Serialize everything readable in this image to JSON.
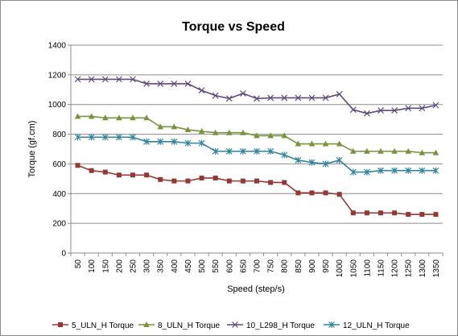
{
  "chart_data": {
    "type": "line",
    "title": "Torque vs Speed",
    "xlabel": "Speed (step/s)",
    "ylabel": "Torque (gf.cm)",
    "ylim": [
      0,
      1400
    ],
    "yticks": [
      0,
      200,
      400,
      600,
      800,
      1000,
      1200,
      1400
    ],
    "categories": [
      "50",
      "100",
      "150",
      "200",
      "250",
      "300",
      "350",
      "400",
      "450",
      "500",
      "550",
      "600",
      "650",
      "700",
      "750",
      "800",
      "850",
      "900",
      "950",
      "1000",
      "1050",
      "1100",
      "1150",
      "1200",
      "1250",
      "1300",
      "1350"
    ],
    "grid": "horizontal",
    "legend_position": "bottom",
    "series": [
      {
        "name": "5_ULN_H Torque",
        "color": "#953735",
        "marker": "square",
        "values": [
          590,
          555,
          545,
          525,
          525,
          525,
          495,
          485,
          485,
          505,
          505,
          485,
          485,
          485,
          475,
          475,
          405,
          405,
          405,
          395,
          270,
          270,
          270,
          270,
          260,
          260,
          260
        ]
      },
      {
        "name": "8_ULN_H Torque",
        "color": "#77933c",
        "marker": "triangle",
        "values": [
          920,
          920,
          910,
          910,
          910,
          910,
          850,
          850,
          830,
          820,
          810,
          810,
          810,
          790,
          790,
          790,
          735,
          735,
          735,
          735,
          685,
          685,
          685,
          685,
          685,
          675,
          675
        ]
      },
      {
        "name": "10_L298_H Torque",
        "color": "#604a7b",
        "marker": "x",
        "values": [
          1170,
          1170,
          1170,
          1170,
          1170,
          1140,
          1140,
          1140,
          1140,
          1095,
          1060,
          1040,
          1075,
          1040,
          1045,
          1045,
          1045,
          1045,
          1045,
          1070,
          965,
          940,
          960,
          960,
          975,
          975,
          995
        ]
      },
      {
        "name": "12_ULN_H Torque",
        "color": "#31859c",
        "marker": "star",
        "values": [
          780,
          780,
          780,
          780,
          780,
          750,
          750,
          750,
          740,
          740,
          685,
          685,
          685,
          685,
          685,
          660,
          625,
          610,
          600,
          625,
          545,
          545,
          555,
          555,
          555,
          555,
          555
        ]
      }
    ]
  }
}
